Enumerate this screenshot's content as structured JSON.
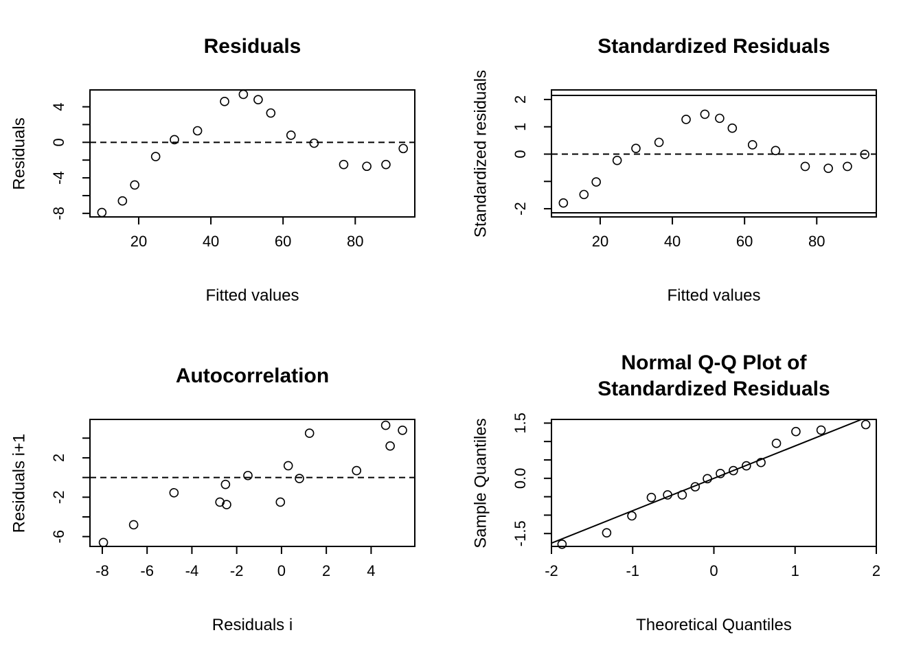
{
  "chart_data": [
    {
      "id": "residuals",
      "type": "scatter",
      "title": [
        "Residuals"
      ],
      "xlabel": "Fitted values",
      "ylabel": "Residuals",
      "xlim": [
        6.5,
        96.5
      ],
      "ylim": [
        -8.4,
        5.9
      ],
      "xticks": [
        20,
        40,
        60,
        80
      ],
      "xtick_labels": [
        "20",
        "40",
        "60",
        "80"
      ],
      "yticks": [
        -8,
        -6,
        -4,
        -2,
        0,
        2,
        4
      ],
      "ytick_labels": [
        "-8",
        "",
        "-4",
        "",
        "0",
        "",
        "4"
      ],
      "hline": {
        "y": 0,
        "style": "dashed"
      },
      "x": [
        9.8,
        15.5,
        18.9,
        24.7,
        29.9,
        36.3,
        43.8,
        49.0,
        53.1,
        56.6,
        62.2,
        68.6,
        76.8,
        83.2,
        88.5,
        93.3
      ],
      "y": [
        -7.9,
        -6.6,
        -4.8,
        -1.6,
        0.3,
        1.3,
        4.6,
        5.4,
        4.8,
        3.3,
        0.8,
        -0.1,
        -2.5,
        -2.7,
        -2.5,
        -0.7
      ]
    },
    {
      "id": "standardized",
      "type": "scatter",
      "title": [
        "Standardized Residuals"
      ],
      "xlabel": "Fitted values",
      "ylabel": "Standardized residuals",
      "xlim": [
        6.5,
        96.5
      ],
      "ylim": [
        -2.3,
        2.35
      ],
      "xticks": [
        20,
        40,
        60,
        80
      ],
      "xtick_labels": [
        "20",
        "40",
        "60",
        "80"
      ],
      "yticks": [
        -2,
        -1,
        0,
        1,
        2
      ],
      "ytick_labels": [
        "-2",
        "",
        "0",
        "1",
        "2"
      ],
      "hline": {
        "y": 0,
        "style": "dashed"
      },
      "solid_hlines": [
        -2.15,
        2.15
      ],
      "x": [
        9.8,
        15.5,
        18.9,
        24.7,
        29.9,
        36.3,
        43.8,
        49.0,
        53.1,
        56.6,
        62.2,
        68.6,
        76.8,
        83.2,
        88.5,
        93.3
      ],
      "y": [
        -1.79,
        -1.48,
        -1.02,
        -0.23,
        0.21,
        0.43,
        1.27,
        1.46,
        1.31,
        0.95,
        0.34,
        0.13,
        -0.45,
        -0.52,
        -0.45,
        -0.01
      ]
    },
    {
      "id": "autocorrelation",
      "type": "scatter",
      "title": [
        "Autocorrelation"
      ],
      "xlabel": "Residuals i",
      "ylabel": "Residuals i+1",
      "xlim": [
        -8.55,
        5.95
      ],
      "ylim": [
        -7.0,
        5.9
      ],
      "xticks": [
        -8,
        -6,
        -4,
        -2,
        0,
        2,
        4
      ],
      "xtick_labels": [
        "-8",
        "-6",
        "-4",
        "-2",
        "0",
        "2",
        "4"
      ],
      "yticks": [
        -6,
        -4,
        -2,
        0,
        2,
        4
      ],
      "ytick_labels": [
        "-6",
        "",
        "-2",
        "",
        "2",
        ""
      ],
      "hline": {
        "y": 0,
        "style": "dashed"
      },
      "x": [
        -7.95,
        -6.6,
        -4.8,
        -2.75,
        -2.5,
        -2.45,
        -1.5,
        -0.05,
        0.3,
        0.8,
        1.25,
        3.35,
        4.65,
        4.85,
        5.4
      ],
      "y": [
        -6.6,
        -4.8,
        -1.55,
        -2.5,
        -0.7,
        -2.75,
        0.2,
        -2.5,
        1.2,
        -0.1,
        4.5,
        0.7,
        5.3,
        3.2,
        4.8
      ]
    },
    {
      "id": "qq",
      "type": "scatter",
      "title": [
        "Normal Q-Q Plot of",
        "Standardized Residuals"
      ],
      "xlabel": "Theoretical Quantiles",
      "ylabel": "Sample Quantiles",
      "xlim": [
        -2.0,
        2.0
      ],
      "ylim": [
        -1.85,
        1.6
      ],
      "xticks": [
        -2,
        -1,
        0,
        1,
        2
      ],
      "xtick_labels": [
        "-2",
        "-1",
        "0",
        "1",
        "2"
      ],
      "yticks": [
        -1.5,
        -1.0,
        -0.5,
        0.0,
        0.5,
        1.0,
        1.5
      ],
      "ytick_labels": [
        "-1.5",
        "",
        "",
        "0.0",
        "",
        "",
        "1.5"
      ],
      "reference_line": {
        "intercept": 0.0,
        "slope": 0.88
      },
      "x": [
        -1.87,
        -1.32,
        -1.01,
        -0.77,
        -0.57,
        -0.39,
        -0.23,
        -0.08,
        0.08,
        0.24,
        0.4,
        0.58,
        0.77,
        1.01,
        1.32,
        1.87
      ],
      "y": [
        -1.79,
        -1.48,
        -1.02,
        -0.52,
        -0.45,
        -0.45,
        -0.23,
        -0.01,
        0.13,
        0.21,
        0.34,
        0.43,
        0.95,
        1.27,
        1.31,
        1.46
      ]
    }
  ]
}
